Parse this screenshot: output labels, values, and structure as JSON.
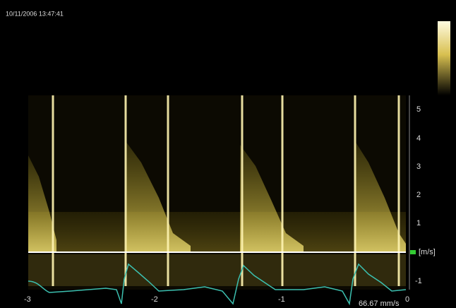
{
  "timestamp": "10/11/2006 13:47:41",
  "velocity_axis": {
    "unit": "[m/s]",
    "ticks": [
      "5",
      "4",
      "3",
      "2",
      "1",
      "-1"
    ]
  },
  "time_axis": {
    "ticks": [
      "-3",
      "-2",
      "-1",
      "0"
    ]
  },
  "sweep_speed": "66.67 mm/s"
}
